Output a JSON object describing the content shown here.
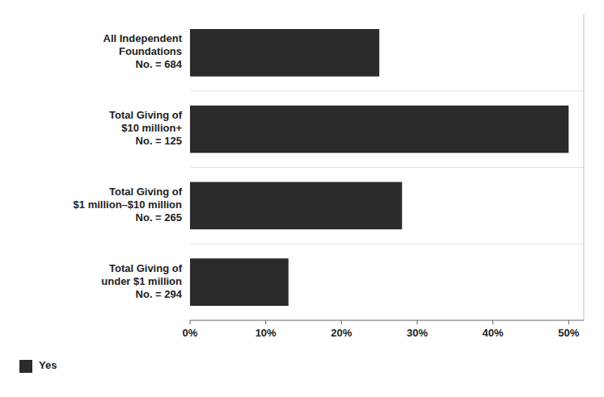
{
  "chart_data": {
    "type": "bar",
    "orientation": "horizontal",
    "categories": [
      "All Independent\nFoundations\nNo. = 684",
      "Total Giving of\n$10 million+\nNo. = 125",
      "Total Giving of\n$1 million–$10 million\nNo. = 265",
      "Total Giving of\nunder $1 million\nNo. = 294"
    ],
    "series": [
      {
        "name": "Yes",
        "color": "#2b2b2b",
        "values": [
          25,
          50,
          28,
          13
        ]
      }
    ],
    "xlim": [
      0,
      52
    ],
    "xticks": [
      {
        "value": 0,
        "label": "0%"
      },
      {
        "value": 10,
        "label": "10%"
      },
      {
        "value": 20,
        "label": "20%"
      },
      {
        "value": 30,
        "label": "30%"
      },
      {
        "value": 40,
        "label": "40%"
      },
      {
        "value": 50,
        "label": "50%"
      }
    ],
    "grid": false,
    "legend": "bottom"
  }
}
